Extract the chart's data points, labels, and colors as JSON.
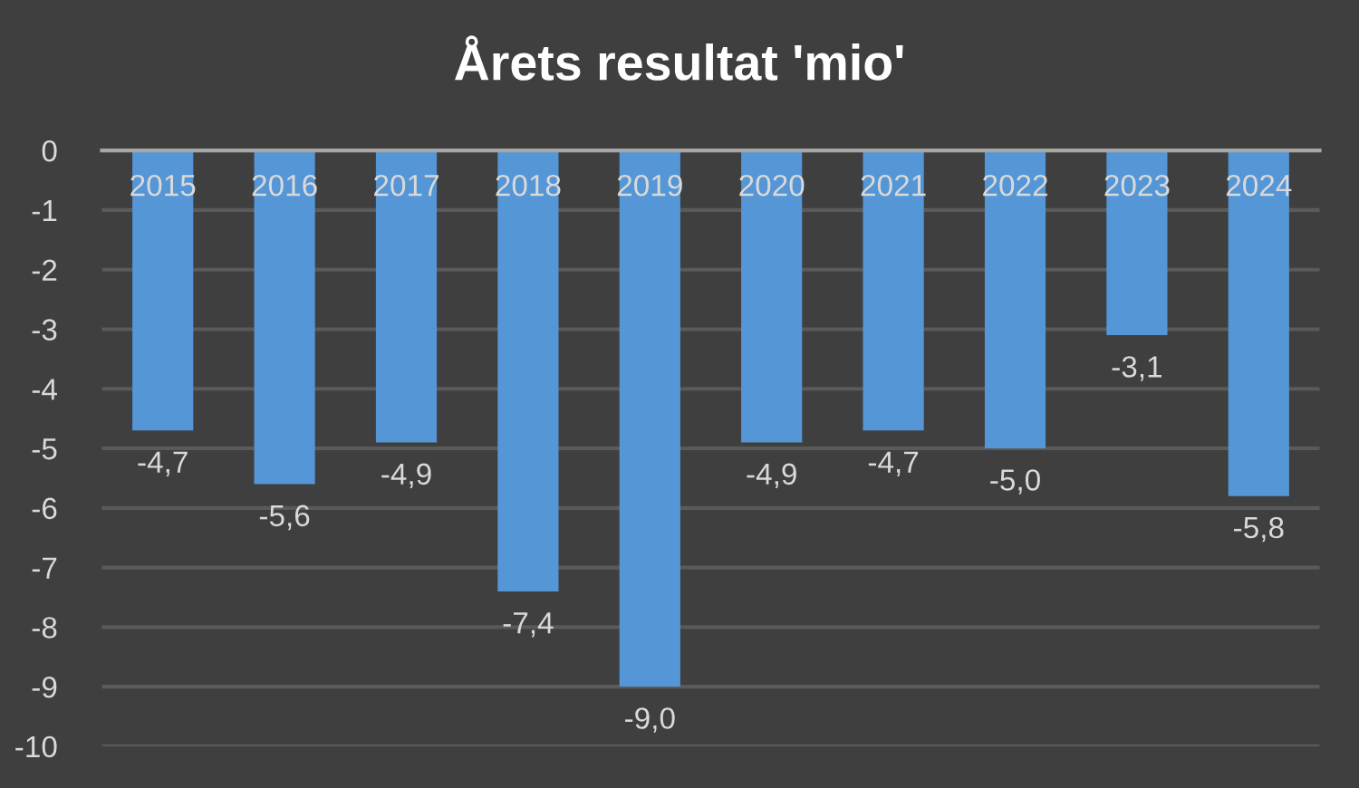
{
  "chart_data": {
    "type": "bar",
    "title": "Årets resultat 'mio'",
    "categories": [
      "2015",
      "2016",
      "2017",
      "2018",
      "2019",
      "2020",
      "2021",
      "2022",
      "2023",
      "2024"
    ],
    "values": [
      -4.7,
      -5.6,
      -4.9,
      -7.4,
      -9.0,
      -4.9,
      -4.7,
      -5.0,
      -3.1,
      -5.8
    ],
    "value_labels": [
      "-4,7",
      "-5,6",
      "-4,9",
      "-7,4",
      "-9,0",
      "-4,9",
      "-4,7",
      "-5,0",
      "-3,1",
      "-5,8"
    ],
    "color": "#5596d6",
    "ylim": [
      -10,
      0
    ],
    "yticks": [
      -10,
      -9,
      -8,
      -7,
      -6,
      -5,
      -4,
      -3,
      -2,
      -1,
      0
    ],
    "grid": "y",
    "legend": false
  }
}
